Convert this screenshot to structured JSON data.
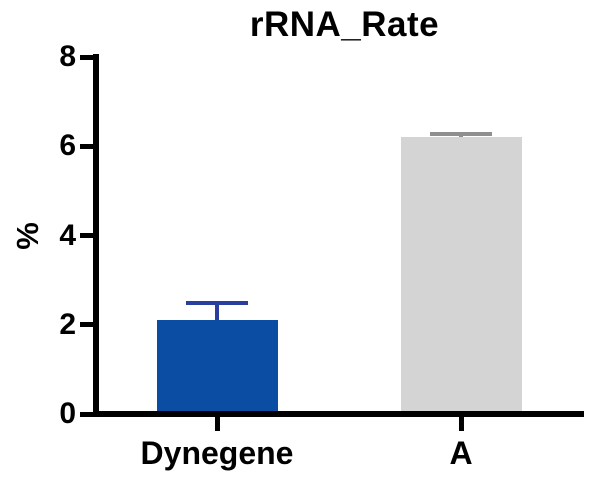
{
  "chart_data": {
    "type": "bar",
    "title": "rRNA_Rate",
    "ylabel": "%",
    "xlabel": "",
    "categories": [
      "Dynegene",
      "A"
    ],
    "values": [
      2.1,
      6.2
    ],
    "error_bar_tops": [
      2.48,
      6.27
    ],
    "ylim": [
      0,
      8
    ],
    "yticks": [
      "0",
      "2",
      "4",
      "6",
      "8"
    ],
    "grid": false,
    "legend": "none",
    "colors": {
      "bars": [
        "#0b4da3",
        "#d4d4d4"
      ],
      "error_bars": [
        "#2a3f9d",
        "#8f8f8f"
      ],
      "axis": "#000000",
      "text": "#000000",
      "background": "#ffffff"
    }
  }
}
